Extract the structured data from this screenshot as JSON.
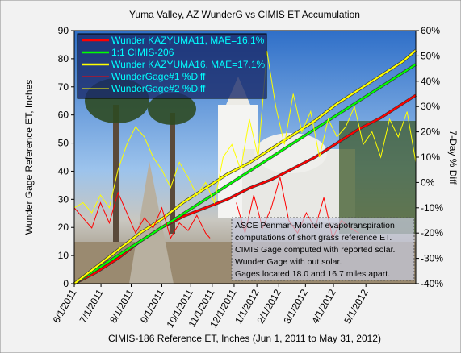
{
  "chart_data": {
    "type": "line",
    "title": "Yuma Valley, AZ WunderG vs CIMIS  ET Accumulation",
    "x_label": "CIMIS-186 Reference ET, Inches (Jun 1, 2011 to May 31, 2012)",
    "y_label": "Wunder Gage Reference ET, Inches",
    "y2_label": "7-Day % Diff",
    "xlim": [
      0,
      78
    ],
    "xticks": [
      {
        "value": 0,
        "label": "6/1/2011"
      },
      {
        "value": 6.1,
        "label": "7/1/2011"
      },
      {
        "value": 13,
        "label": "8/1/2011"
      },
      {
        "value": 20,
        "label": "9/1/2011"
      },
      {
        "value": 26.6,
        "label": "10/1/2011"
      },
      {
        "value": 31.5,
        "label": "11/1/2011"
      },
      {
        "value": 36.5,
        "label": "12/1/2011"
      },
      {
        "value": 41.7,
        "label": "1/1/2012"
      },
      {
        "value": 46.7,
        "label": "2/1/2012"
      },
      {
        "value": 52.8,
        "label": "3/1/2012"
      },
      {
        "value": 59.2,
        "label": "4/1/2012"
      },
      {
        "value": 66.6,
        "label": "5/1/2012"
      }
    ],
    "ylim": [
      0,
      90
    ],
    "yticks": [
      0,
      10,
      20,
      30,
      40,
      50,
      60,
      70,
      80,
      90
    ],
    "y2lim": [
      -40,
      60
    ],
    "y2ticks": [
      {
        "value": -40,
        "label": "-40%"
      },
      {
        "value": -30,
        "label": "-30%"
      },
      {
        "value": -20,
        "label": "-20%"
      },
      {
        "value": -10,
        "label": "-10%"
      },
      {
        "value": 0,
        "label": "0%"
      },
      {
        "value": 10,
        "label": "10%"
      },
      {
        "value": 20,
        "label": "20%"
      },
      {
        "value": 30,
        "label": "30%"
      },
      {
        "value": 40,
        "label": "40%"
      },
      {
        "value": 50,
        "label": "50%"
      },
      {
        "value": 60,
        "label": "60%"
      }
    ],
    "series": [
      {
        "name": "Wunder KAZYUMA11, MAE=16.1%",
        "color": "#ff0000",
        "x": [
          0,
          5,
          10,
          15,
          20,
          25,
          30,
          35,
          40,
          45,
          50,
          55,
          60,
          65,
          70,
          75,
          78
        ],
        "values": [
          0,
          4,
          9,
          15,
          20,
          24,
          27,
          30,
          34,
          37,
          41,
          45,
          50,
          55,
          59,
          64,
          67
        ]
      },
      {
        "name": "1:1 CIMIS-206",
        "color": "#00ff00",
        "x": [
          0,
          78
        ],
        "values": [
          0,
          78
        ]
      },
      {
        "name": "Wunder KAZYUMA16, MAE=17.1%",
        "color": "#ffff00",
        "x": [
          0,
          5,
          10,
          15,
          20,
          25,
          30,
          35,
          40,
          45,
          50,
          55,
          60,
          65,
          70,
          75,
          78
        ],
        "values": [
          0,
          6,
          12,
          18,
          23,
          29,
          34,
          39,
          43,
          48,
          53,
          58,
          64,
          69,
          74,
          79,
          83
        ]
      },
      {
        "name": "WunderGage#1 %Diff",
        "color": "#ff0000",
        "axis": "y2",
        "x": [
          0,
          2,
          4,
          6,
          8,
          10,
          12,
          14,
          16,
          18,
          20,
          22,
          24,
          26,
          28,
          30,
          31,
          34,
          37,
          39,
          41,
          43,
          45,
          47,
          49,
          51,
          53,
          55,
          57,
          59,
          61,
          63,
          65
        ],
        "values": [
          -10,
          -14,
          -18,
          -8,
          -16,
          -4,
          -12,
          -20,
          -14,
          -18,
          -10,
          -22,
          -16,
          -19,
          -13,
          -20,
          -22,
          null,
          -8,
          -20,
          -5,
          -18,
          -10,
          2,
          -15,
          -20,
          -12,
          -18,
          -6,
          -22,
          -15,
          -18,
          -20
        ]
      },
      {
        "name": "WunderGage#2 %Diff",
        "color": "#ffff00",
        "axis": "y2",
        "x": [
          0,
          2,
          4,
          6,
          8,
          10,
          12,
          14,
          16,
          18,
          20,
          22,
          24,
          26,
          28,
          30,
          32,
          34,
          36,
          38,
          40,
          42,
          44,
          46,
          48,
          50,
          52,
          54,
          56,
          58,
          60,
          62,
          64,
          66,
          68,
          70,
          72,
          74,
          76,
          78
        ],
        "values": [
          -10,
          -8,
          -12,
          -5,
          -10,
          5,
          15,
          22,
          18,
          10,
          5,
          -2,
          8,
          2,
          -5,
          0,
          -8,
          10,
          15,
          5,
          25,
          10,
          52,
          30,
          15,
          35,
          20,
          28,
          10,
          25,
          18,
          22,
          30,
          15,
          20,
          10,
          25,
          18,
          28,
          8
        ]
      }
    ],
    "annotation": [
      "ASCE Penman-Monteif evapotranspiration",
      "computations of short grass reference ET.",
      "CIMIS Gage computed with reported solar.",
      "Wunder Gage with out solar.",
      "Gages located 18.0 and 16.7 miles apart."
    ]
  }
}
